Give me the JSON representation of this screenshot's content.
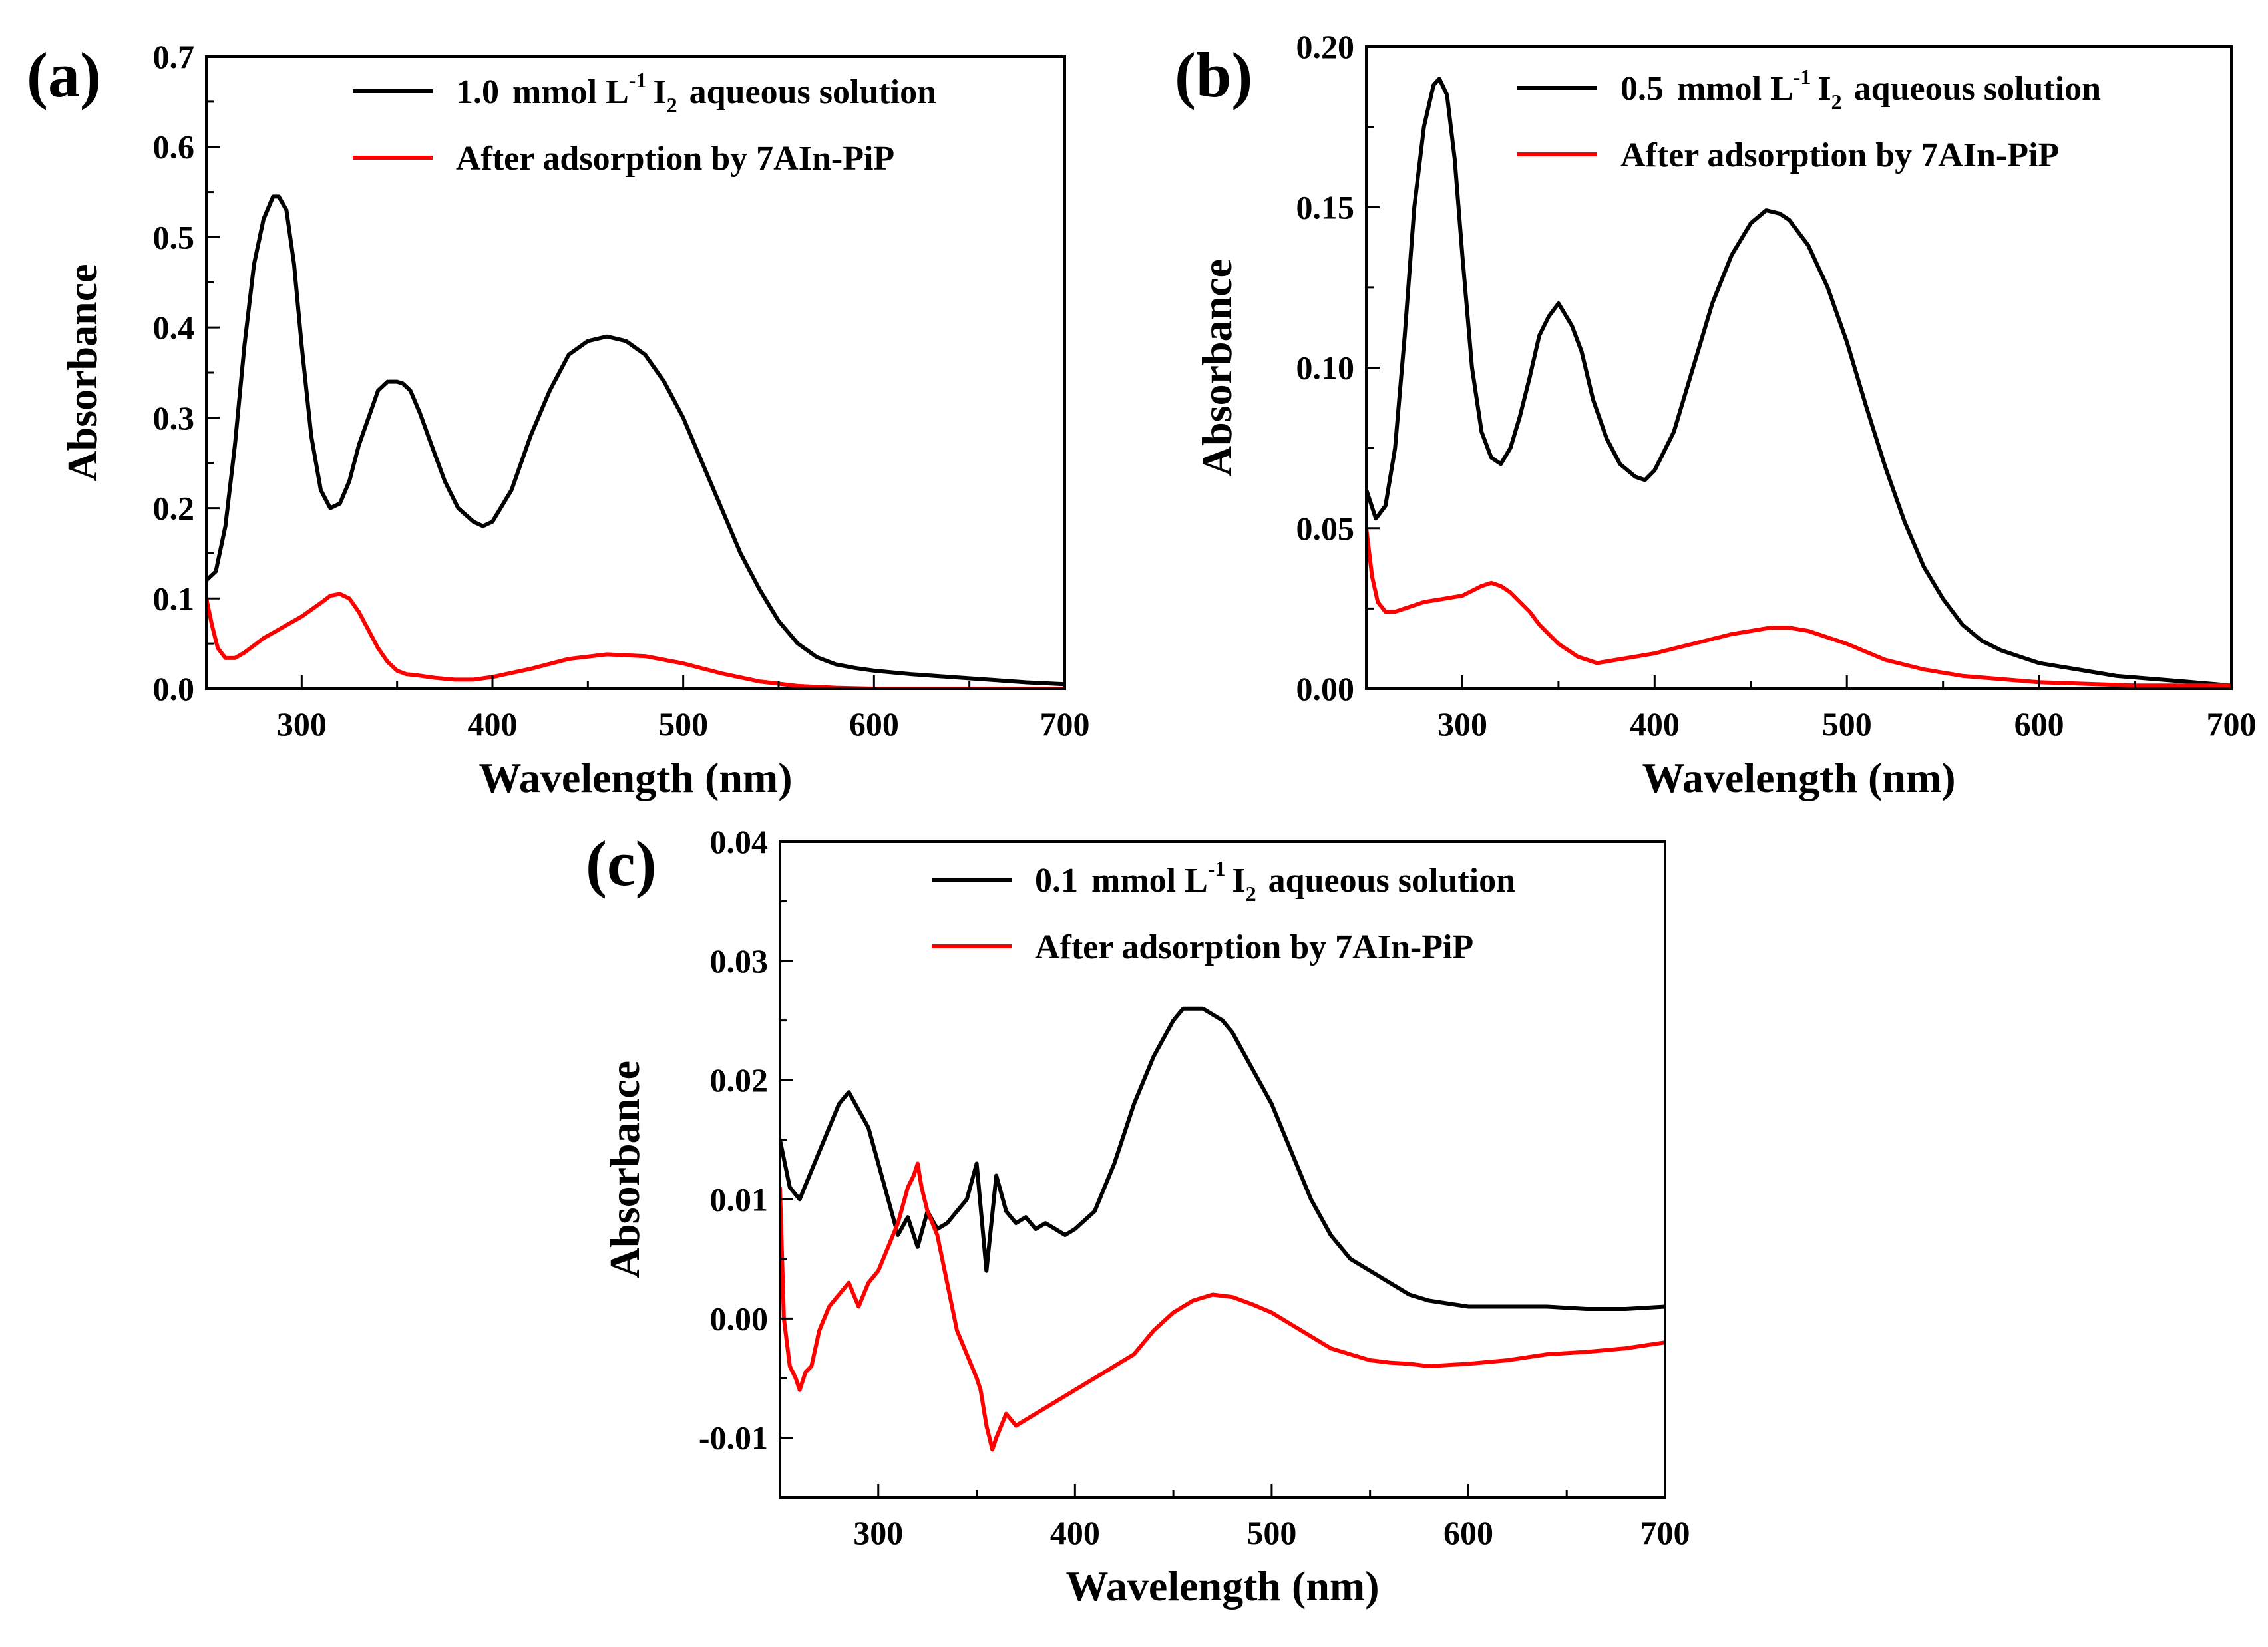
{
  "figure_caption": "",
  "chart_data": [
    {
      "panel": "(a)",
      "type": "line",
      "xlabel": "Wavelength (nm)",
      "ylabel": "Absorbance",
      "xlim": [
        250,
        700
      ],
      "ylim": [
        0,
        0.7
      ],
      "xticks": [
        300,
        400,
        500,
        600,
        700
      ],
      "yticks": [
        0.0,
        0.1,
        0.2,
        0.3,
        0.4,
        0.5,
        0.6,
        0.7
      ],
      "ytick_labels": [
        "0.0",
        "0.1",
        "0.2",
        "0.3",
        "0.4",
        "0.5",
        "0.6",
        "0.7"
      ],
      "legend": {
        "conc": "1.0",
        "unit_pre": "mmol L",
        "sup": "-1",
        "species": "I",
        "sub": "2",
        "tail": "aqueous solution",
        "after": "After adsorption by 7AIn-PiP"
      },
      "legend_position": "top-right",
      "series": [
        {
          "name": "1.0 mmol L-1 I2 aqueous solution",
          "color": "#000000",
          "x": [
            250,
            255,
            260,
            265,
            270,
            275,
            280,
            285,
            288,
            292,
            296,
            300,
            305,
            310,
            315,
            320,
            325,
            330,
            335,
            340,
            345,
            350,
            353,
            357,
            362,
            368,
            375,
            382,
            390,
            395,
            400,
            410,
            420,
            430,
            440,
            450,
            460,
            470,
            480,
            490,
            500,
            510,
            520,
            530,
            540,
            550,
            560,
            570,
            580,
            590,
            600,
            620,
            640,
            660,
            680,
            700
          ],
          "y": [
            0.12,
            0.13,
            0.18,
            0.27,
            0.38,
            0.47,
            0.52,
            0.545,
            0.545,
            0.53,
            0.47,
            0.38,
            0.28,
            0.22,
            0.2,
            0.205,
            0.23,
            0.27,
            0.3,
            0.33,
            0.34,
            0.34,
            0.338,
            0.33,
            0.305,
            0.27,
            0.23,
            0.2,
            0.185,
            0.18,
            0.185,
            0.22,
            0.28,
            0.33,
            0.37,
            0.385,
            0.39,
            0.385,
            0.37,
            0.34,
            0.3,
            0.25,
            0.2,
            0.15,
            0.11,
            0.075,
            0.05,
            0.035,
            0.027,
            0.023,
            0.02,
            0.016,
            0.013,
            0.01,
            0.007,
            0.005
          ]
        },
        {
          "name": "After adsorption by 7AIn-PiP",
          "color": "#ff0000",
          "x": [
            250,
            253,
            256,
            260,
            265,
            270,
            275,
            280,
            290,
            300,
            310,
            315,
            320,
            325,
            330,
            335,
            340,
            345,
            350,
            355,
            360,
            370,
            380,
            390,
            400,
            420,
            440,
            460,
            480,
            500,
            520,
            540,
            560,
            580,
            600,
            650,
            700
          ],
          "y": [
            0.1,
            0.07,
            0.045,
            0.034,
            0.034,
            0.04,
            0.048,
            0.056,
            0.068,
            0.08,
            0.095,
            0.103,
            0.105,
            0.1,
            0.085,
            0.065,
            0.045,
            0.03,
            0.02,
            0.016,
            0.015,
            0.012,
            0.01,
            0.01,
            0.013,
            0.022,
            0.033,
            0.038,
            0.036,
            0.028,
            0.017,
            0.008,
            0.003,
            0.001,
            0.0,
            0.0,
            0.0
          ]
        }
      ]
    },
    {
      "panel": "(b)",
      "type": "line",
      "xlabel": "Wavelength (nm)",
      "ylabel": "Absorbance",
      "xlim": [
        250,
        700
      ],
      "ylim": [
        0,
        0.2
      ],
      "xticks": [
        300,
        400,
        500,
        600,
        700
      ],
      "yticks": [
        0.0,
        0.05,
        0.1,
        0.15,
        0.2
      ],
      "ytick_labels": [
        "0.00",
        "0.05",
        "0.10",
        "0.15",
        "0.20"
      ],
      "legend": {
        "conc": "0.5",
        "unit_pre": "mmol L",
        "sup": "-1",
        "species": "I",
        "sub": "2",
        "tail": "aqueous solution",
        "after": "After adsorption by 7AIn-PiP"
      },
      "legend_position": "top-right",
      "series": [
        {
          "name": "0.5 mmol L-1 I2 aqueous solution",
          "color": "#000000",
          "x": [
            250,
            255,
            260,
            265,
            270,
            275,
            280,
            285,
            288,
            292,
            296,
            300,
            305,
            310,
            315,
            320,
            325,
            330,
            335,
            340,
            345,
            350,
            353,
            357,
            362,
            368,
            375,
            382,
            390,
            395,
            400,
            410,
            420,
            430,
            440,
            450,
            458,
            465,
            470,
            480,
            490,
            500,
            510,
            520,
            530,
            540,
            550,
            560,
            570,
            580,
            590,
            600,
            620,
            640,
            660,
            680,
            700
          ],
          "y": [
            0.062,
            0.053,
            0.057,
            0.075,
            0.11,
            0.15,
            0.175,
            0.188,
            0.19,
            0.185,
            0.165,
            0.135,
            0.1,
            0.08,
            0.072,
            0.07,
            0.075,
            0.085,
            0.097,
            0.11,
            0.116,
            0.12,
            0.117,
            0.113,
            0.105,
            0.09,
            0.078,
            0.07,
            0.066,
            0.065,
            0.068,
            0.08,
            0.1,
            0.12,
            0.135,
            0.145,
            0.149,
            0.148,
            0.146,
            0.138,
            0.125,
            0.108,
            0.088,
            0.069,
            0.052,
            0.038,
            0.028,
            0.02,
            0.015,
            0.012,
            0.01,
            0.008,
            0.006,
            0.004,
            0.003,
            0.002,
            0.001
          ]
        },
        {
          "name": "After adsorption by 7AIn-PiP",
          "color": "#ff0000",
          "x": [
            250,
            253,
            256,
            260,
            265,
            270,
            280,
            290,
            300,
            310,
            315,
            320,
            325,
            330,
            335,
            340,
            345,
            350,
            355,
            360,
            365,
            370,
            380,
            390,
            400,
            420,
            440,
            460,
            470,
            480,
            500,
            520,
            540,
            560,
            580,
            600,
            650,
            700
          ],
          "y": [
            0.05,
            0.035,
            0.027,
            0.024,
            0.024,
            0.025,
            0.027,
            0.028,
            0.029,
            0.032,
            0.033,
            0.032,
            0.03,
            0.027,
            0.024,
            0.02,
            0.017,
            0.014,
            0.012,
            0.01,
            0.009,
            0.008,
            0.009,
            0.01,
            0.011,
            0.014,
            0.017,
            0.019,
            0.019,
            0.018,
            0.014,
            0.009,
            0.006,
            0.004,
            0.003,
            0.002,
            0.001,
            0.001
          ]
        }
      ]
    },
    {
      "panel": "(c)",
      "type": "line",
      "xlabel": "Wavelength (nm)",
      "ylabel": "Absorbance",
      "xlim": [
        250,
        700
      ],
      "ylim": [
        -0.015,
        0.04
      ],
      "xticks": [
        300,
        400,
        500,
        600,
        700
      ],
      "yticks": [
        -0.01,
        0.0,
        0.01,
        0.02,
        0.03,
        0.04
      ],
      "ytick_labels": [
        "-0.01",
        "0.00",
        "0.01",
        "0.02",
        "0.03",
        "0.04"
      ],
      "legend": {
        "conc": "0.1",
        "unit_pre": "mmol L",
        "sup": "-1",
        "species": "I",
        "sub": "2",
        "tail": "aqueous solution",
        "after": "After adsorption by 7AIn-PiP"
      },
      "legend_position": "top-right",
      "series": [
        {
          "name": "0.1 mmol L-1 I2 aqueous solution",
          "color": "#000000",
          "x": [
            250,
            255,
            260,
            265,
            270,
            275,
            280,
            285,
            290,
            295,
            300,
            305,
            310,
            315,
            320,
            325,
            330,
            335,
            340,
            345,
            350,
            355,
            360,
            365,
            370,
            375,
            380,
            385,
            390,
            395,
            400,
            410,
            420,
            430,
            440,
            450,
            455,
            460,
            465,
            470,
            475,
            480,
            490,
            500,
            510,
            520,
            530,
            540,
            550,
            560,
            570,
            580,
            600,
            620,
            640,
            660,
            680,
            700
          ],
          "y": [
            0.015,
            0.011,
            0.01,
            0.012,
            0.014,
            0.016,
            0.018,
            0.019,
            0.0175,
            0.016,
            0.013,
            0.01,
            0.007,
            0.0085,
            0.006,
            0.009,
            0.0075,
            0.008,
            0.009,
            0.01,
            0.013,
            0.004,
            0.012,
            0.009,
            0.008,
            0.0085,
            0.0075,
            0.008,
            0.0075,
            0.007,
            0.0075,
            0.009,
            0.013,
            0.018,
            0.022,
            0.025,
            0.026,
            0.026,
            0.026,
            0.0255,
            0.025,
            0.024,
            0.021,
            0.018,
            0.014,
            0.01,
            0.007,
            0.005,
            0.004,
            0.003,
            0.002,
            0.0015,
            0.001,
            0.001,
            0.001,
            0.0008,
            0.0008,
            0.001
          ]
        },
        {
          "name": "After adsorption by 7AIn-PiP",
          "color": "#ff0000",
          "x": [
            250,
            252,
            255,
            258,
            260,
            263,
            266,
            270,
            275,
            280,
            285,
            290,
            295,
            300,
            305,
            310,
            315,
            318,
            320,
            322,
            325,
            330,
            335,
            340,
            345,
            350,
            352,
            355,
            358,
            360,
            365,
            370,
            380,
            390,
            400,
            410,
            420,
            430,
            440,
            450,
            460,
            470,
            480,
            490,
            500,
            510,
            520,
            530,
            540,
            550,
            560,
            570,
            580,
            600,
            620,
            640,
            660,
            680,
            700
          ],
          "y": [
            0.011,
            0.0,
            -0.004,
            -0.005,
            -0.006,
            -0.0045,
            -0.004,
            -0.001,
            0.001,
            0.002,
            0.003,
            0.001,
            0.003,
            0.004,
            0.006,
            0.008,
            0.011,
            0.012,
            0.013,
            0.011,
            0.009,
            0.007,
            0.003,
            -0.001,
            -0.003,
            -0.005,
            -0.006,
            -0.009,
            -0.011,
            -0.01,
            -0.008,
            -0.009,
            -0.008,
            -0.007,
            -0.006,
            -0.005,
            -0.004,
            -0.003,
            -0.001,
            0.0005,
            0.0015,
            0.002,
            0.0018,
            0.0012,
            0.0005,
            -0.0005,
            -0.0015,
            -0.0025,
            -0.003,
            -0.0035,
            -0.0037,
            -0.0038,
            -0.004,
            -0.0038,
            -0.0035,
            -0.003,
            -0.0028,
            -0.0025,
            -0.002
          ]
        }
      ]
    }
  ]
}
